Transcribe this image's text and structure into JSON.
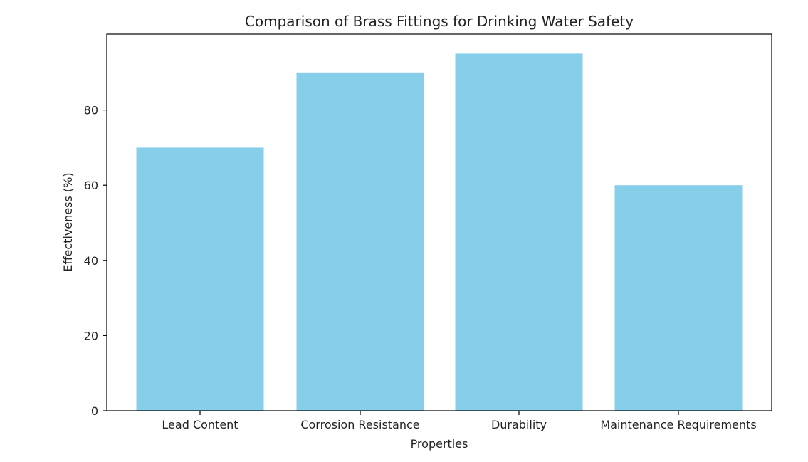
{
  "chart_data": {
    "type": "bar",
    "title": "Comparison of Brass Fittings for Drinking Water Safety",
    "xlabel": "Properties",
    "ylabel": "Effectiveness (%)",
    "categories": [
      "Lead Content",
      "Corrosion Resistance",
      "Durability",
      "Maintenance Requirements"
    ],
    "values": [
      70,
      90,
      95,
      60
    ],
    "ylim": [
      0,
      100
    ],
    "yticks": [
      0,
      20,
      40,
      60,
      80
    ],
    "bar_color": "#87ceeb",
    "grid": false
  }
}
